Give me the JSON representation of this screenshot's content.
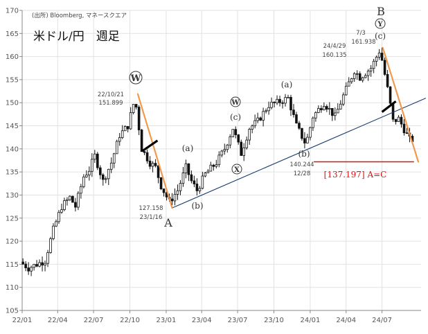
{
  "chart_data": {
    "type": "candlestick-weekly",
    "source": "(出所) Bloomberg, マネースクエア",
    "title": "米ドル/円　週足",
    "xlim": [
      "2022-01",
      "2024-10"
    ],
    "ylim": [
      105,
      170
    ],
    "x_ticks": [
      "22/01",
      "22/04",
      "22/07",
      "22/10",
      "23/01",
      "23/04",
      "23/07",
      "23/10",
      "24/01",
      "24/04",
      "24/07"
    ],
    "y_ticks": [
      105,
      110,
      115,
      120,
      125,
      130,
      135,
      140,
      145,
      150,
      155,
      160,
      165,
      170
    ],
    "price_path": [
      [
        "2022-01-03",
        115.5
      ],
      [
        "2022-01-24",
        114.2
      ],
      [
        "2022-02-14",
        115.0
      ],
      [
        "2022-03-07",
        115.8
      ],
      [
        "2022-03-28",
        122.5
      ],
      [
        "2022-04-18",
        127.5
      ],
      [
        "2022-05-09",
        129.5
      ],
      [
        "2022-05-23",
        127.5
      ],
      [
        "2022-06-13",
        134.0
      ],
      [
        "2022-06-27",
        135.5
      ],
      [
        "2022-07-11",
        138.5
      ],
      [
        "2022-08-01",
        133.0
      ],
      [
        "2022-08-22",
        137.0
      ],
      [
        "2022-09-12",
        143.0
      ],
      [
        "2022-10-03",
        145.0
      ],
      [
        "2022-10-21",
        151.0
      ],
      [
        "2022-11-07",
        140.0
      ],
      [
        "2022-11-28",
        137.0
      ],
      [
        "2022-12-12",
        136.0
      ],
      [
        "2022-12-26",
        132.0
      ],
      [
        "2023-01-16",
        128.5
      ],
      [
        "2023-02-06",
        131.0
      ],
      [
        "2023-02-27",
        136.0
      ],
      [
        "2023-03-13",
        133.0
      ],
      [
        "2023-03-27",
        131.0
      ],
      [
        "2023-04-17",
        134.5
      ],
      [
        "2023-05-15",
        137.0
      ],
      [
        "2023-06-05",
        140.0
      ],
      [
        "2023-06-26",
        144.5
      ],
      [
        "2023-07-17",
        139.0
      ],
      [
        "2023-08-07",
        144.5
      ],
      [
        "2023-08-28",
        146.0
      ],
      [
        "2023-09-25",
        149.5
      ],
      [
        "2023-10-16",
        150.0
      ],
      [
        "2023-11-13",
        151.0
      ],
      [
        "2023-12-04",
        145.0
      ],
      [
        "2023-12-28",
        141.0
      ],
      [
        "2024-01-15",
        147.0
      ],
      [
        "2024-02-12",
        150.0
      ],
      [
        "2024-03-11",
        147.0
      ],
      [
        "2024-04-01",
        151.5
      ],
      [
        "2024-04-29",
        157.0
      ],
      [
        "2024-05-13",
        155.5
      ],
      [
        "2024-06-10",
        157.5
      ],
      [
        "2024-07-03",
        161.5
      ],
      [
        "2024-07-22",
        153.0
      ],
      [
        "2024-08-05",
        146.0
      ],
      [
        "2024-08-19",
        146.5
      ],
      [
        "2024-09-16",
        142.0
      ]
    ],
    "trendline": {
      "from": [
        "2023-01-16",
        127.2
      ],
      "to": [
        "2024-10-20",
        151.0
      ],
      "color": "#1a3a6e"
    },
    "wave_lines": [
      {
        "from": [
          "2022-10-21",
          151.9
        ],
        "to": [
          "2023-01-16",
          127.2
        ]
      },
      {
        "from": [
          "2024-07-03",
          161.9
        ],
        "to": [
          "2024-10-01",
          137.2
        ]
      }
    ],
    "wave_line_color": "#f09a50",
    "breakout_marks": [
      {
        "from": [
          "2022-11-01",
          139.5
        ],
        "to": [
          "2022-12-10",
          141.8
        ]
      },
      {
        "from": [
          "2024-07-01",
          148.0
        ],
        "to": [
          "2024-08-05",
          150.3
        ]
      }
    ],
    "target_line": {
      "from": [
        "2024-01-10",
        137.2
      ],
      "to": [
        "2024-09-20",
        137.2
      ],
      "color": "#dd1111"
    },
    "annotations": {
      "w1": "W",
      "peak1_date": "22/10/21",
      "peak1_value": "151.899",
      "a_low_value": "127.158",
      "a_low_date": "23/1/16",
      "a_label": "A",
      "b1": "(b)",
      "a1": "(a)",
      "w2": "W",
      "c1": "(c)",
      "x1": "X",
      "a2": "(a)",
      "b2": "(b)",
      "b2_value": "140.244",
      "b2_date": "12/28",
      "p1_date": "24/4/29",
      "p1_value": "160.135",
      "p2_date": "7/3",
      "p2_value": "161.938",
      "b_label": "B",
      "y_label": "Y",
      "c2": "(c)",
      "target": "[137.197] A=C"
    }
  }
}
